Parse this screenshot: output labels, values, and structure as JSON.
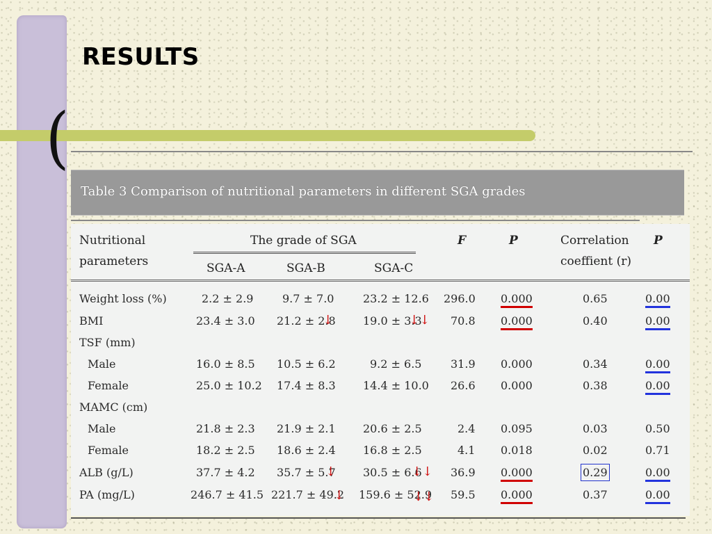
{
  "slide": {
    "title": "RESULTS",
    "bracket": "("
  },
  "table": {
    "caption": "Table 3  Comparison of nutritional parameters in different SGA grades",
    "headers": {
      "nutritional_1": "Nutritional",
      "nutritional_2": "parameters",
      "grade_group": "The grade of SGA",
      "sga_a": "SGA-A",
      "sga_b": "SGA-B",
      "sga_c": "SGA-C",
      "f": "F",
      "p": "P",
      "corr_1": "Correlation",
      "corr_2": "coeffient (r)",
      "p2": "P"
    },
    "rows": [
      {
        "label": "Weight loss (%)",
        "a": "2.2 ± 2.9",
        "b": "9.7 ± 7.0",
        "c": "23.2 ± 12.6",
        "f": "296.0",
        "p": "0.000",
        "r": "0.65",
        "p2": "0.00"
      },
      {
        "label": "BMI",
        "a": "23.4 ± 3.0",
        "b": "21.2 ± 2.8",
        "b_arrow": "↓",
        "c": "19.0 ± 3.3",
        "c_arrow": "↓↓",
        "f": "70.8",
        "p": "0.000",
        "r": "0.40",
        "p2": "0.00"
      },
      {
        "label": "TSF (mm)"
      },
      {
        "label": "Male",
        "a": "16.0 ± 8.5",
        "b": "10.5 ± 6.2",
        "c": "9.2 ± 6.5",
        "f": "31.9",
        "p": "0.000",
        "r": "0.34",
        "p2": "0.00"
      },
      {
        "label": "Female",
        "a": "25.0 ± 10.2",
        "b": "17.4 ± 8.3",
        "c": "14.4 ± 10.0",
        "f": "26.6",
        "p": "0.000",
        "r": "0.38",
        "p2": "0.00"
      },
      {
        "label": "MAMC (cm)"
      },
      {
        "label": "Male",
        "a": "21.8 ± 2.3",
        "b": "21.9 ± 2.1",
        "c": "20.6 ± 2.5",
        "f": "2.4",
        "p": "0.095",
        "r": "0.03",
        "p2": "0.50"
      },
      {
        "label": "Female",
        "a": "18.2 ± 2.5",
        "b": "18.6 ± 2.4",
        "c": "16.8 ± 2.5",
        "f": "4.1",
        "p": "0.018",
        "r": "0.02",
        "p2": "0.71"
      },
      {
        "label": "ALB (g/L)",
        "a": "37.7 ± 4.2",
        "b": "35.7 ± 5.7",
        "b_arrow": "↓",
        "c": "30.5 ± 6.6",
        "c_arrow": "↓↓",
        "f": "36.9",
        "p": "0.000",
        "r": "0.29",
        "p2": "0.00"
      },
      {
        "label": "PA (mg/L)",
        "a": "246.7 ± 41.5",
        "b": "221.7 ± 49.2",
        "b_arrow": "↓",
        "c": "159.6 ± 52.9",
        "c_arrow": "↓↓",
        "f": "59.5",
        "p": "0.000",
        "r": "0.37",
        "p2": "0.00"
      }
    ]
  },
  "colors": {
    "background": "#f4f1dc",
    "side_bar": "#c9bfd9",
    "olive_bar": "#c4cc6a",
    "caption_band": "#999999",
    "red_mark": "#d00000",
    "blue_mark": "#2233dd"
  }
}
